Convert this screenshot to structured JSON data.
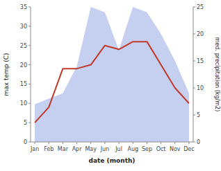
{
  "chart_data": {
    "type": "line",
    "categories": [
      "Jan",
      "Feb",
      "Mar",
      "Apr",
      "May",
      "Jun",
      "Jul",
      "Aug",
      "Sep",
      "Oct",
      "Nov",
      "Dec"
    ],
    "series": [
      {
        "type": "area",
        "color": "#c5cff0",
        "axis": "y2",
        "values": [
          7,
          8,
          9,
          14,
          25,
          24,
          17,
          25,
          24,
          20,
          15,
          9
        ]
      },
      {
        "type": "line",
        "color": "#c0392b",
        "values": [
          5,
          9,
          19,
          19,
          20,
          25,
          24,
          26,
          26,
          20,
          14,
          10
        ]
      }
    ],
    "xlabel": "date (month)",
    "ylabel": "max temp (C)",
    "y2label": "med. precipitation (kg/m2)",
    "ylim": [
      0,
      35
    ],
    "yticks": [
      0,
      5,
      10,
      15,
      20,
      25,
      30,
      35
    ],
    "y2lim": [
      0,
      25
    ],
    "y2ticks": [
      0,
      5,
      10,
      15,
      20,
      25
    ],
    "grid": false
  }
}
